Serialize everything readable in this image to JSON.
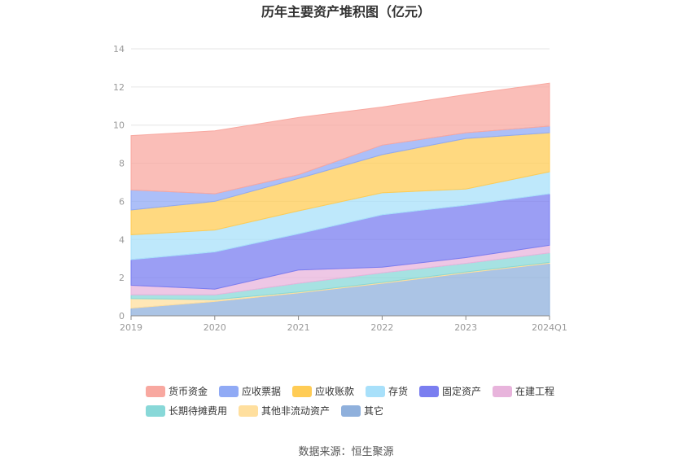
{
  "chart_data": {
    "type": "area",
    "stacked": true,
    "title": "历年主要资产堆积图（亿元）",
    "categories": [
      "2019",
      "2020",
      "2021",
      "2022",
      "2023",
      "2024Q1"
    ],
    "ylim": [
      0,
      14
    ],
    "yticks": [
      "0",
      "2",
      "4",
      "6",
      "8",
      "10",
      "12",
      "14"
    ],
    "grid": true,
    "legend_position": "bottom",
    "series": [
      {
        "name": "其它",
        "color": "#8fb0dc",
        "values": [
          0.4,
          0.75,
          1.2,
          1.7,
          2.25,
          2.75
        ]
      },
      {
        "name": "其他非流动资产",
        "color": "#ffdf9e",
        "values": [
          0.5,
          0.1,
          0.05,
          0.05,
          0.05,
          0.05
        ]
      },
      {
        "name": "长期待摊费用",
        "color": "#88d8d8",
        "values": [
          0.2,
          0.25,
          0.45,
          0.5,
          0.45,
          0.5
        ]
      },
      {
        "name": "在建工程",
        "color": "#e8b4dc",
        "values": [
          0.5,
          0.3,
          0.7,
          0.3,
          0.3,
          0.4
        ]
      },
      {
        "name": "固定资产",
        "color": "#7a7ef0",
        "values": [
          1.35,
          1.95,
          1.9,
          2.75,
          2.75,
          2.7
        ]
      },
      {
        "name": "存货",
        "color": "#a8e0fa",
        "values": [
          1.3,
          1.15,
          1.2,
          1.15,
          0.85,
          1.15
        ]
      },
      {
        "name": "应收账款",
        "color": "#ffcc55",
        "values": [
          1.3,
          1.5,
          1.7,
          2.0,
          2.65,
          2.05
        ]
      },
      {
        "name": "应收票据",
        "color": "#90aaf5",
        "values": [
          1.05,
          0.4,
          0.2,
          0.5,
          0.3,
          0.35
        ]
      },
      {
        "name": "货币资金",
        "color": "#f8a8a0",
        "values": [
          2.85,
          3.3,
          3.0,
          2.0,
          2.0,
          2.25
        ]
      }
    ]
  },
  "legend": [
    {
      "label": "货币资金",
      "color": "#f8a8a0"
    },
    {
      "label": "应收票据",
      "color": "#90aaf5"
    },
    {
      "label": "应收账款",
      "color": "#ffcc55"
    },
    {
      "label": "存货",
      "color": "#a8e0fa"
    },
    {
      "label": "固定资产",
      "color": "#7a7ef0"
    },
    {
      "label": "在建工程",
      "color": "#e8b4dc"
    },
    {
      "label": "长期待摊费用",
      "color": "#88d8d8"
    },
    {
      "label": "其他非流动资产",
      "color": "#ffdf9e"
    },
    {
      "label": "其它",
      "color": "#8fb0dc"
    }
  ],
  "source": "数据来源：恒生聚源"
}
